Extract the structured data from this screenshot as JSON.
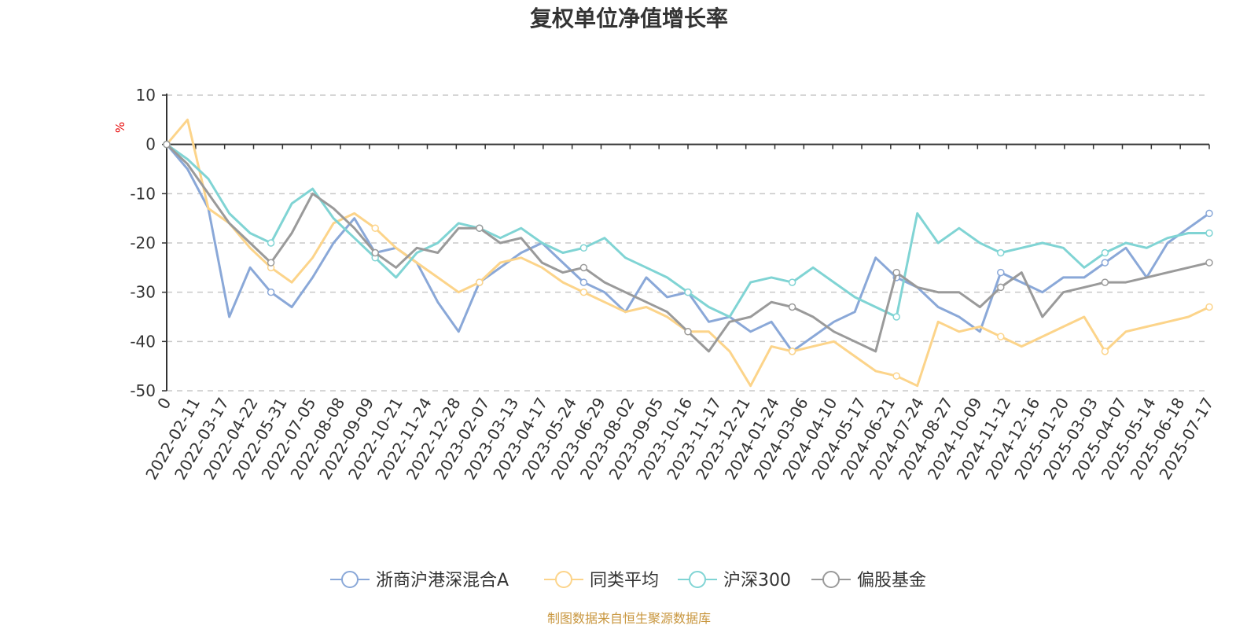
{
  "chart_data": {
    "type": "line",
    "title": "复权单位净值增长率",
    "ylabel": "%",
    "ylim": [
      -50,
      10
    ],
    "yticks": [
      10,
      0,
      -10,
      -20,
      -30,
      -40,
      -50
    ],
    "grid": true,
    "legend_position": "bottom",
    "x_tick_labels": [
      "0",
      "2022-02-11",
      "2022-03-17",
      "2022-04-22",
      "2022-05-31",
      "2022-07-05",
      "2022-08-08",
      "2022-09-09",
      "2022-10-21",
      "2022-11-24",
      "2022-12-28",
      "2023-02-07",
      "2023-03-13",
      "2023-04-17",
      "2023-05-24",
      "2023-06-29",
      "2023-08-02",
      "2023-09-05",
      "2023-10-16",
      "2023-11-17",
      "2023-12-21",
      "2024-01-24",
      "2024-03-06",
      "2024-04-10",
      "2024-05-17",
      "2024-06-21",
      "2024-07-24",
      "2024-08-27",
      "2024-10-09",
      "2024-11-12",
      "2024-12-16",
      "2025-01-20",
      "2025-03-03",
      "2025-04-07",
      "2025-05-14",
      "2025-06-18",
      "2025-07-17"
    ],
    "series": [
      {
        "name": "浙商沪港深混合A",
        "color": "#8aa8d8",
        "values": [
          0,
          -5,
          -13,
          -35,
          -25,
          -30,
          -33,
          -27,
          -20,
          -15,
          -22,
          -21,
          -24,
          -32,
          -38,
          -28,
          -25,
          -22,
          -20,
          -24,
          -28,
          -30,
          -34,
          -27,
          -31,
          -30,
          -36,
          -35,
          -38,
          -36,
          -42,
          -39,
          -36,
          -34,
          -23,
          -27,
          -29,
          -33,
          -35,
          -38,
          -26,
          -28,
          -30,
          -27,
          -27,
          -24,
          -21,
          -27,
          -20,
          -17,
          -14
        ]
      },
      {
        "name": "同类平均",
        "color": "#fcd48a",
        "values": [
          0,
          5,
          -13,
          -16,
          -21,
          -25,
          -28,
          -23,
          -16,
          -14,
          -17,
          -21,
          -24,
          -27,
          -30,
          -28,
          -24,
          -23,
          -25,
          -28,
          -30,
          -32,
          -34,
          -33,
          -35,
          -38,
          -38,
          -42,
          -49,
          -41,
          -42,
          -41,
          -40,
          -43,
          -46,
          -47,
          -49,
          -36,
          -38,
          -37,
          -39,
          -41,
          -39,
          -37,
          -35,
          -42,
          -38,
          -37,
          -36,
          -35,
          -33
        ]
      },
      {
        "name": "沪深300",
        "color": "#80d4d4",
        "values": [
          0,
          -3,
          -7,
          -14,
          -18,
          -20,
          -12,
          -9,
          -15,
          -19,
          -23,
          -27,
          -22,
          -20,
          -16,
          -17,
          -19,
          -17,
          -20,
          -22,
          -21,
          -19,
          -23,
          -25,
          -27,
          -30,
          -33,
          -35,
          -28,
          -27,
          -28,
          -25,
          -28,
          -31,
          -33,
          -35,
          -14,
          -20,
          -17,
          -20,
          -22,
          -21,
          -20,
          -21,
          -25,
          -22,
          -20,
          -21,
          -19,
          -18,
          -18
        ]
      },
      {
        "name": "偏股基金",
        "color": "#9a9a9a",
        "values": [
          0,
          -4,
          -10,
          -16,
          -20,
          -24,
          -18,
          -10,
          -13,
          -17,
          -22,
          -25,
          -21,
          -22,
          -17,
          -17,
          -20,
          -19,
          -24,
          -26,
          -25,
          -28,
          -30,
          -32,
          -34,
          -38,
          -42,
          -36,
          -35,
          -32,
          -33,
          -35,
          -38,
          -40,
          -42,
          -26,
          -29,
          -30,
          -30,
          -33,
          -29,
          -26,
          -35,
          -30,
          -29,
          -28,
          -28,
          -27,
          -26,
          -25,
          -24
        ]
      }
    ]
  },
  "footer": {
    "source": "制图数据来自恒生聚源数据库"
  }
}
